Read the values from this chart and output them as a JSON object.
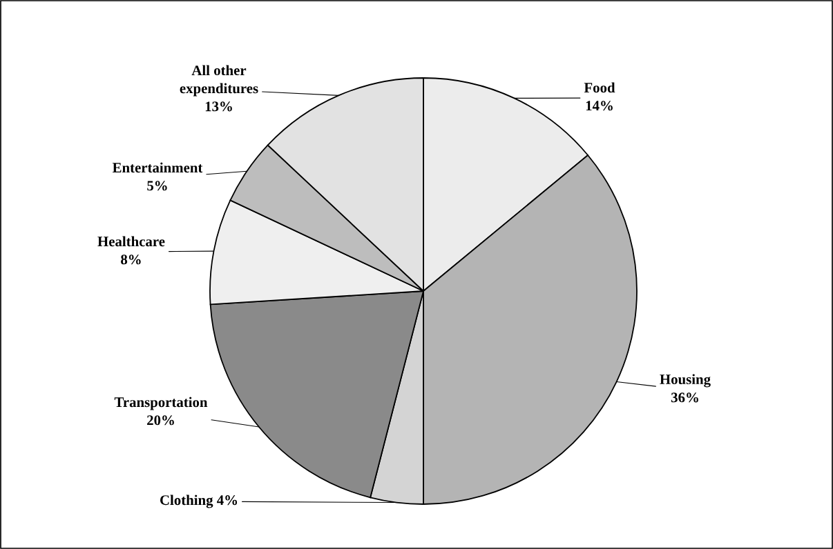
{
  "chart_data": {
    "type": "pie",
    "categories": [
      "Food",
      "Housing",
      "Clothing",
      "Transportation",
      "Healthcare",
      "Entertainment",
      "All other expenditures"
    ],
    "values": [
      14,
      36,
      4,
      20,
      8,
      5,
      13
    ],
    "colors": [
      "#ececec",
      "#b4b4b4",
      "#d4d4d4",
      "#8a8a8a",
      "#efefef",
      "#bdbdbd",
      "#e2e2e2"
    ],
    "value_labels": [
      "14%",
      "36%",
      "4%",
      "20%",
      "8%",
      "5%",
      "13%"
    ],
    "legend": false
  }
}
